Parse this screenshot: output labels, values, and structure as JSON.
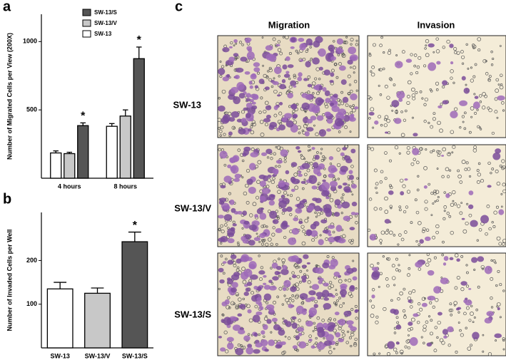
{
  "panel_labels": [
    "a",
    "b",
    "c"
  ],
  "chart_data": [
    {
      "type": "bar",
      "ylabel": "Number of Migrated Cells per View (200X)",
      "categories": [
        "4 hours",
        "8 hours"
      ],
      "series": [
        {
          "name": "SW-13",
          "color": "#ffffff",
          "values": [
            185,
            380
          ],
          "errors": [
            15,
            20
          ]
        },
        {
          "name": "SW-13/V",
          "color": "#c8c8c8",
          "values": [
            180,
            455
          ],
          "errors": [
            10,
            45
          ]
        },
        {
          "name": "SW-13/S",
          "color": "#555555",
          "values": [
            385,
            875
          ],
          "errors": [
            20,
            85
          ],
          "labels": [
            "*",
            "*"
          ]
        }
      ],
      "ylim": [
        0,
        1200
      ],
      "yticks": [
        500,
        1000
      ],
      "legend": "top-left"
    },
    {
      "type": "bar",
      "ylabel": "Number of Invaded Cells per Well",
      "categories": [
        "SW-13",
        "SW-13/V",
        "SW-13/S"
      ],
      "values": [
        135,
        125,
        243
      ],
      "errors": [
        15,
        12,
        22
      ],
      "colors": [
        "#ffffff",
        "#c8c8c8",
        "#555555"
      ],
      "labels": [
        null,
        null,
        "*"
      ],
      "ylim": [
        0,
        310
      ],
      "yticks": [
        100,
        200
      ]
    }
  ],
  "images": {
    "columns": [
      "Migration",
      "Invasion"
    ],
    "rows": [
      "SW-13",
      "SW-13/V",
      "SW-13/S"
    ]
  }
}
